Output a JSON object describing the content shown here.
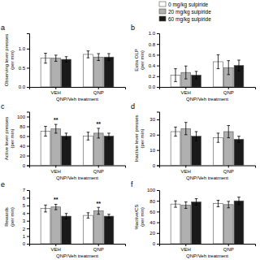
{
  "chart_data": [
    {
      "type": "bar",
      "title": "a",
      "xlabel": "QNP/Veh treatment",
      "ylabel": "Observing lever presses\n(per min)",
      "categories": [
        "VEH",
        "QNP"
      ],
      "series": [
        {
          "name": "0 mg/kg sulpiride",
          "color": "#ffffff",
          "values": [
            0.75,
            0.85
          ],
          "errors": [
            0.13,
            0.09
          ]
        },
        {
          "name": "20 mg/kg sulpiride",
          "color": "#b0b0b0",
          "values": [
            0.75,
            0.78
          ],
          "errors": [
            0.08,
            0.09
          ]
        },
        {
          "name": "60 mg/kg sulpiride",
          "color": "#1a1a1a",
          "values": [
            0.72,
            0.78
          ],
          "errors": [
            0.07,
            0.09
          ]
        }
      ],
      "ylim": [
        0.0,
        1.4
      ],
      "yticks": [
        {
          "value": 0.0,
          "label": "0.0"
        },
        0.5,
        {
          "value": 1.0,
          "label": "1.0"
        }
      ],
      "grid": false,
      "legend": false
    },
    {
      "type": "bar",
      "title": "b",
      "xlabel": "QNP/Veh treatment",
      "ylabel": "Extra OLP\n(per min)",
      "categories": [
        "VEH",
        "QNP"
      ],
      "series": [
        {
          "name": "0 mg/kg sulpiride",
          "color": "#ffffff",
          "values": [
            0.22,
            0.47
          ],
          "errors": [
            0.12,
            0.13
          ]
        },
        {
          "name": "20 mg/kg sulpiride",
          "color": "#b0b0b0",
          "values": [
            0.27,
            0.36
          ],
          "errors": [
            0.12,
            0.13
          ]
        },
        {
          "name": "60 mg/kg sulpiride",
          "color": "#1a1a1a",
          "values": [
            0.22,
            0.4
          ],
          "errors": [
            0.07,
            0.1
          ]
        }
      ],
      "ylim": [
        0.0,
        1.0
      ],
      "yticks": [
        {
          "value": 0.0,
          "label": "0.0"
        },
        0.2,
        0.4,
        0.6,
        0.8,
        {
          "value": 1.0,
          "label": "1.0"
        }
      ],
      "grid": false,
      "legend": "upper left"
    },
    {
      "type": "bar",
      "title": "c",
      "xlabel": "QNP/Veh treatment",
      "ylabel": "Active lever presses\n(per min)",
      "categories": [
        "VEH",
        "QNP"
      ],
      "series": [
        {
          "name": "0 mg/kg sulpiride",
          "color": "#ffffff",
          "values": [
            70,
            60
          ],
          "errors": [
            10,
            8
          ]
        },
        {
          "name": "20 mg/kg sulpiride",
          "color": "#b0b0b0",
          "values": [
            75,
            66
          ],
          "errors": [
            9,
            10
          ]
        },
        {
          "name": "60 mg/kg sulpiride",
          "color": "#1a1a1a",
          "values": [
            60,
            60
          ],
          "errors": [
            6,
            6
          ]
        }
      ],
      "ylim": [
        0,
        110
      ],
      "yticks": [
        0,
        20,
        40,
        60,
        80,
        100
      ],
      "annotations": [
        {
          "category": "VEH",
          "text": "**"
        },
        {
          "category": "QNP",
          "text": "**"
        }
      ],
      "grid": false,
      "legend": false
    },
    {
      "type": "bar",
      "title": "d",
      "xlabel": "QNP/Veh treatment",
      "ylabel": "Inactive lever presses\n(per min)",
      "categories": [
        "VEH",
        "QNP"
      ],
      "series": [
        {
          "name": "0 mg/kg sulpiride",
          "color": "#ffffff",
          "values": [
            22,
            18
          ],
          "errors": [
            3,
            3
          ]
        },
        {
          "name": "20 mg/kg sulpiride",
          "color": "#b0b0b0",
          "values": [
            24,
            22
          ],
          "errors": [
            4,
            4
          ]
        },
        {
          "name": "60 mg/kg sulpiride",
          "color": "#1a1a1a",
          "values": [
            19,
            17
          ],
          "errors": [
            3,
            2
          ]
        }
      ],
      "ylim": [
        0,
        35
      ],
      "yticks": [
        0,
        10,
        20,
        30
      ],
      "grid": false,
      "legend": false
    },
    {
      "type": "bar",
      "title": "e",
      "xlabel": "QNP/Veh treatment",
      "ylabel": "Rewards\n(per min)",
      "categories": [
        "VEH",
        "QNP"
      ],
      "series": [
        {
          "name": "0 mg/kg sulpiride",
          "color": "#ffffff",
          "values": [
            4.6,
            3.7
          ],
          "errors": [
            0.45,
            0.35
          ]
        },
        {
          "name": "20 mg/kg sulpiride",
          "color": "#b0b0b0",
          "values": [
            4.8,
            4.3
          ],
          "errors": [
            0.35,
            0.45
          ]
        },
        {
          "name": "60 mg/kg sulpiride",
          "color": "#1a1a1a",
          "values": [
            3.6,
            3.6
          ],
          "errors": [
            0.35,
            0.25
          ]
        }
      ],
      "ylim": [
        0,
        7
      ],
      "yticks": [
        0,
        1,
        2,
        3,
        4,
        5,
        6,
        7
      ],
      "annotations": [
        {
          "category": "VEH",
          "text": "**"
        },
        {
          "category": "QNP",
          "text": "**"
        }
      ],
      "grid": false,
      "legend": false
    },
    {
      "type": "bar",
      "title": "f",
      "xlabel": "QNP/Veh treatment",
      "ylabel": "%active/CS\n(per min)",
      "categories": [
        "VEH",
        "QNP"
      ],
      "series": [
        {
          "name": "0 mg/kg sulpiride",
          "color": "#ffffff",
          "values": [
            74,
            75
          ],
          "errors": [
            6,
            6
          ]
        },
        {
          "name": "20 mg/kg sulpiride",
          "color": "#b0b0b0",
          "values": [
            72,
            73
          ],
          "errors": [
            6,
            6
          ]
        },
        {
          "name": "60 mg/kg sulpiride",
          "color": "#1a1a1a",
          "values": [
            78,
            80
          ],
          "errors": [
            6,
            7
          ]
        }
      ],
      "ylim": [
        0,
        100
      ],
      "yticks": [
        0,
        20,
        40,
        60,
        80,
        100
      ],
      "grid": false,
      "legend": false
    }
  ]
}
